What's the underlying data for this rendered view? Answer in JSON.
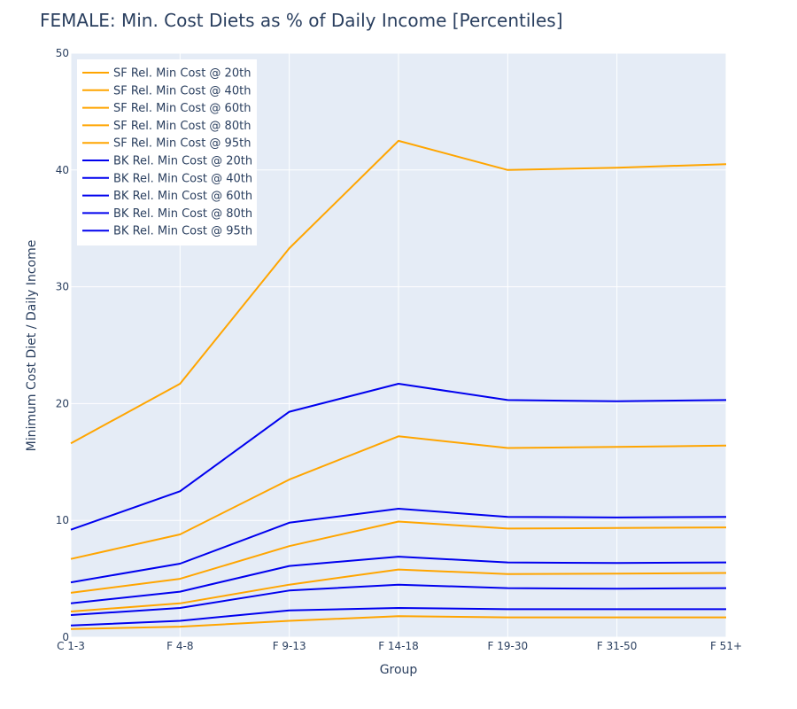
{
  "chart_data": {
    "type": "line",
    "title": "FEMALE: Min. Cost Diets as % of Daily Income [Percentiles]",
    "xlabel": "Group",
    "ylabel": "Minimum Cost Diet / Daily Income",
    "ylim": [
      0,
      50
    ],
    "yticks": [
      0,
      10,
      20,
      30,
      40,
      50
    ],
    "grid": true,
    "legend_position": "top-left",
    "categories": [
      "C 1-3",
      "F 4-8",
      "F 9-13",
      "F 14-18",
      "F 19-30",
      "F 31-50",
      "F 51+"
    ],
    "series": [
      {
        "name": "SF Rel. Min Cost @ 20th",
        "color": "#FFA500",
        "values": [
          16.6,
          21.7,
          33.3,
          42.5,
          40.0,
          40.2,
          40.5
        ]
      },
      {
        "name": "SF Rel. Min Cost @ 40th",
        "color": "#FFA500",
        "values": [
          6.7,
          8.8,
          13.5,
          17.2,
          16.2,
          16.3,
          16.4
        ]
      },
      {
        "name": "SF Rel. Min Cost @ 60th",
        "color": "#FFA500",
        "values": [
          3.8,
          5.0,
          7.8,
          9.9,
          9.3,
          9.35,
          9.4
        ]
      },
      {
        "name": "SF Rel. Min Cost @ 80th",
        "color": "#FFA500",
        "values": [
          2.2,
          2.9,
          4.5,
          5.8,
          5.4,
          5.45,
          5.5
        ]
      },
      {
        "name": "SF Rel. Min Cost @ 95th",
        "color": "#FFA500",
        "values": [
          0.7,
          0.9,
          1.4,
          1.8,
          1.7,
          1.7,
          1.7
        ]
      },
      {
        "name": "BK Rel. Min Cost @ 20th",
        "color": "#0000EE",
        "values": [
          9.2,
          12.5,
          19.3,
          21.7,
          20.3,
          20.2,
          20.3
        ]
      },
      {
        "name": "BK Rel. Min Cost @ 40th",
        "color": "#0000EE",
        "values": [
          4.7,
          6.3,
          9.8,
          11.0,
          10.3,
          10.25,
          10.3
        ]
      },
      {
        "name": "BK Rel. Min Cost @ 60th",
        "color": "#0000EE",
        "values": [
          2.9,
          3.9,
          6.1,
          6.9,
          6.4,
          6.35,
          6.4
        ]
      },
      {
        "name": "BK Rel. Min Cost @ 80th",
        "color": "#0000EE",
        "values": [
          1.9,
          2.5,
          4.0,
          4.5,
          4.2,
          4.15,
          4.2
        ]
      },
      {
        "name": "BK Rel. Min Cost @ 95th",
        "color": "#0000EE",
        "values": [
          1.0,
          1.4,
          2.3,
          2.5,
          2.4,
          2.4,
          2.4
        ]
      }
    ]
  }
}
